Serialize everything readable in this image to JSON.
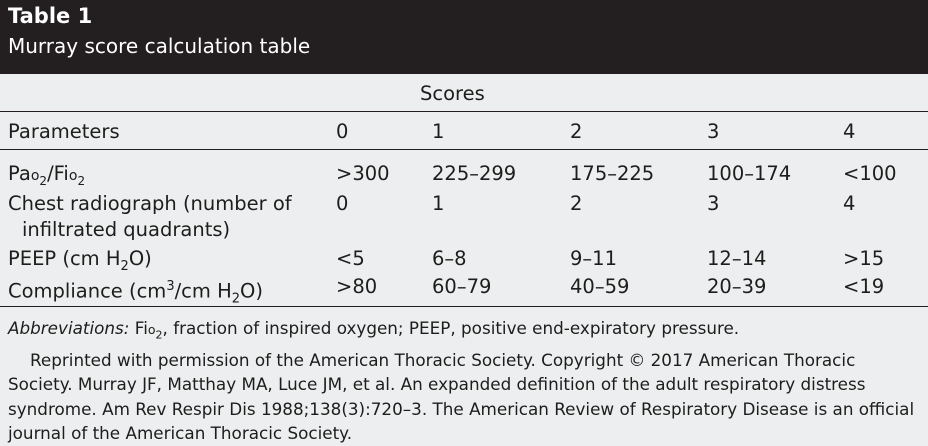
{
  "table": {
    "label": "Table 1",
    "caption": "Murray score calculation table",
    "group_header": "Scores",
    "header": [
      "Parameters",
      "0",
      "1",
      "2",
      "3",
      "4"
    ],
    "rows": [
      {
        "parameter": "Pao2/Fio2",
        "p_main": "Pa",
        "p_sc1": "o",
        "p_sub1": "2",
        "p_mid": "/Fi",
        "p_sc2": "o",
        "p_sub2": "2",
        "values": [
          ">300",
          "225–299",
          "175–225",
          "100–174",
          "<100"
        ]
      },
      {
        "parameter": "Chest radiograph (number of infiltrated quadrants)",
        "p_line1": "Chest radiograph (number of",
        "p_line2": "infiltrated quadrants)",
        "values": [
          "0",
          "1",
          "2",
          "3",
          "4"
        ]
      },
      {
        "parameter": "PEEP (cm H2O)",
        "p_a": "PEEP (cm H",
        "p_sub": "2",
        "p_b": "O)",
        "values": [
          "<5",
          "6–8",
          "9–11",
          "12–14",
          ">15"
        ]
      },
      {
        "parameter": "Compliance (cm3/cm H2O)",
        "p_a": "Compliance (cm",
        "p_sup": "3",
        "p_b": "/cm H",
        "p_sub": "2",
        "p_c": "O)",
        "values": [
          ">80",
          "60–79",
          "40–59",
          "20–39",
          "<19"
        ]
      }
    ]
  },
  "footnote": {
    "abbr_label": "Abbreviations:",
    "abbr_fi": " Fi",
    "abbr_o": "o",
    "abbr_sub": "2",
    "abbr_rest": ", fraction of inspired oxygen; PEEP, positive end-expiratory pressure.",
    "reprint": "Reprinted with permission of the American Thoracic Society. Copyright © 2017 American Thoracic Society. Murray JF, Matthay MA, Luce JM, et al. An expanded definition of the adult respiratory distress syndrome. Am Rev Respir Dis 1988;138(3):720–3. The American Review of Respiratory Disease is an official journal of the American Thoracic Society."
  }
}
